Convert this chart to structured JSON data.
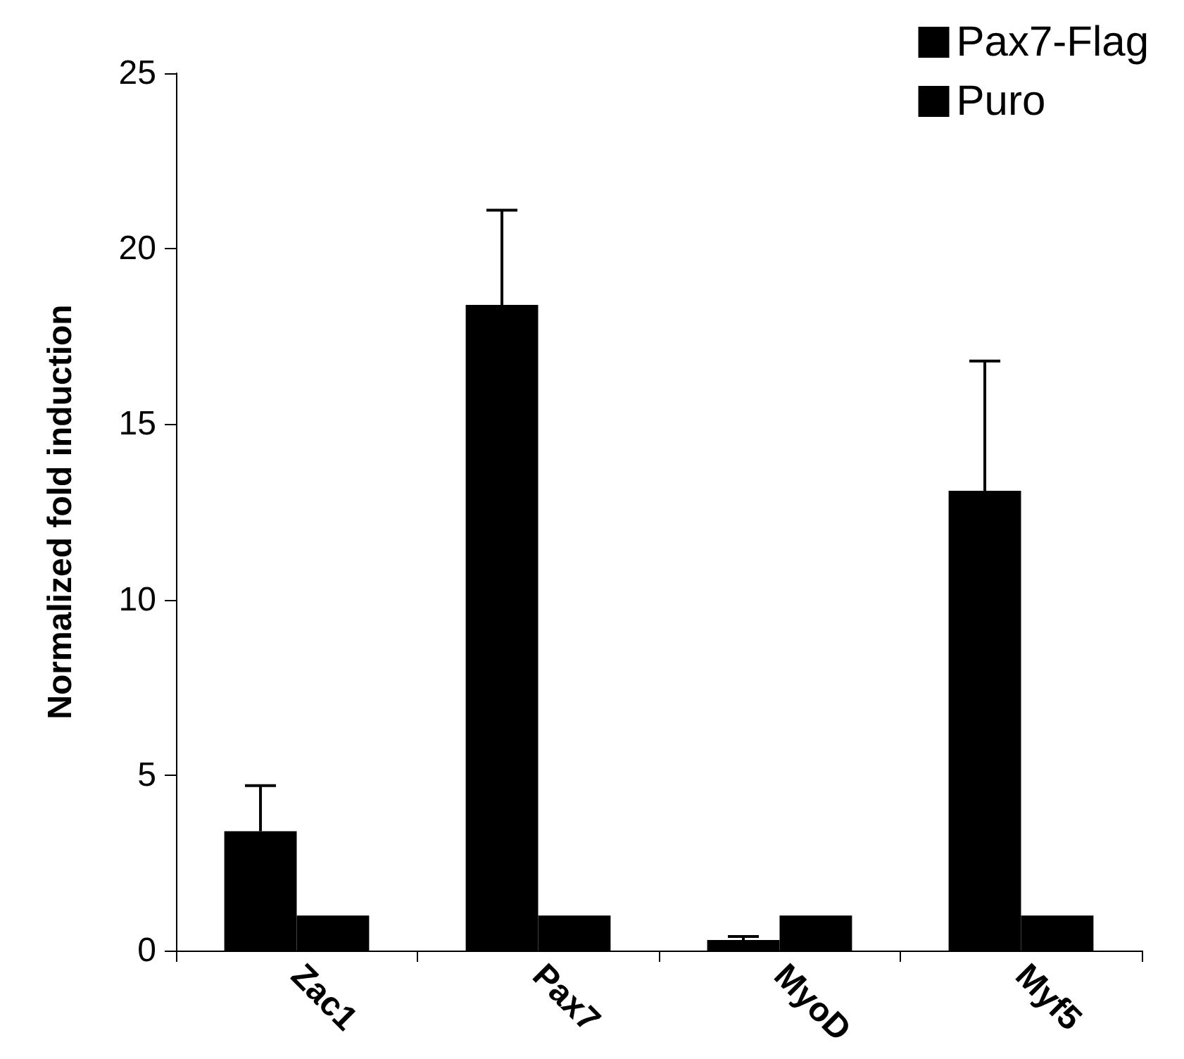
{
  "chart_data": {
    "type": "bar",
    "ylabel": "Normalized fold induction",
    "categories": [
      "Zac1",
      "Pax7",
      "MyoD",
      "Myf5"
    ],
    "series": [
      {
        "name": "Pax7-Flag",
        "color": "#000000",
        "values": [
          3.4,
          18.4,
          0.3,
          13.1
        ],
        "errors": [
          [
            3.4,
            4.7
          ],
          [
            18.4,
            21.1
          ],
          [
            0.3,
            0.4
          ],
          [
            13.1,
            16.8
          ]
        ]
      },
      {
        "name": "Puro",
        "color": "#000000",
        "values": [
          1,
          1,
          1,
          1
        ]
      }
    ],
    "ylim": [
      0,
      25
    ],
    "yticks": [
      0,
      5,
      10,
      15,
      20,
      25
    ],
    "grid": false,
    "legend": "top right"
  }
}
